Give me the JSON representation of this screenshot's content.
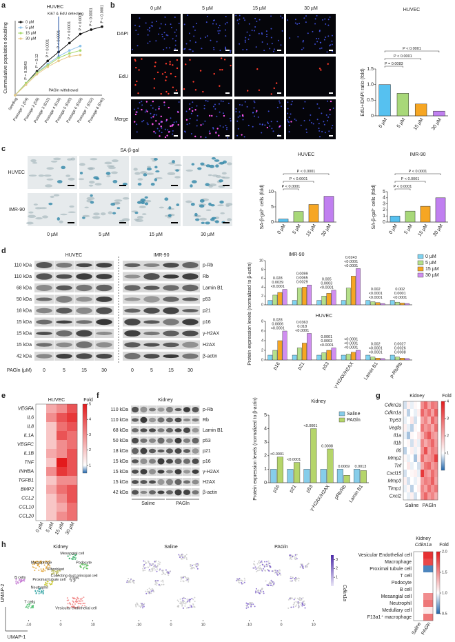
{
  "panel_labels": [
    "a",
    "b",
    "c",
    "d",
    "e",
    "f",
    "g",
    "h"
  ],
  "a": {
    "ki67": "Ki67 & EdU detecting",
    "withdrawal": "PAGln withdrawal"
  },
  "b": {
    "columns": [
      "0 µM",
      "5 µM",
      "15 µM",
      "30 µM"
    ],
    "rows": [
      "DAPI",
      "EdU",
      "Merge"
    ]
  },
  "c": {
    "title": "SA-β-gal",
    "rows": [
      "HUVEC",
      "IMR-90"
    ],
    "columns": [
      "0 µM",
      "5 µM",
      "15 µM",
      "30 µM"
    ]
  },
  "d": {
    "groups": [
      "HUVEC",
      "IMR-90"
    ],
    "kda": [
      "110 kDa",
      "110 kDa",
      "68 kDa",
      "50 kDa",
      "18 kDa",
      "15 kDa",
      "15 kDa",
      "15 kDa",
      "42 kDa"
    ],
    "proteins": [
      "p-Rb",
      "Rb",
      "Lamin B1",
      "p53",
      "p21",
      "p16",
      "γ-H2AX",
      "H2AX",
      "β-actin"
    ],
    "treatment": "PAGln (µM)",
    "lanes": [
      "0",
      "5",
      "15",
      "30",
      "0",
      "5",
      "15",
      "30"
    ]
  },
  "f": {
    "title": "Kidney",
    "kda": [
      "110 kDa",
      "110 kDa",
      "68 kDa",
      "50 kDa",
      "18 kDa",
      "15 kDa",
      "15 kDa",
      "15 kDa",
      "42 kDa"
    ],
    "proteins": [
      "p-Rb",
      "Rb",
      "Lamin B1",
      "p53",
      "p21",
      "p16",
      "γ-H2AX",
      "H2AX",
      "β-actin"
    ],
    "groups": [
      "Saline",
      "PAGln"
    ]
  },
  "h": {
    "titles": [
      "Kidney",
      "Saline",
      "PAGln"
    ],
    "clusters": [
      "Macrophage",
      "Mesangial cell",
      "Podocyte",
      "Fibroblast",
      "Collecting duct principal cell",
      "B cells",
      "Proximal tubule cell",
      "Neutrophil",
      "T cells",
      "Vesicular endothelial cell"
    ],
    "xlim": [
      -15,
      15
    ],
    "xticks": [
      -10,
      0,
      10
    ],
    "x_label": "UMAP-1",
    "y_label": "UMAP-2",
    "colorbar_lim": [
      0,
      3.5
    ],
    "colorbar_ticks": [
      1,
      2,
      3
    ],
    "colorbar_label": "Cdkn1a"
  },
  "chart_data": [
    {
      "type": "line",
      "title": "HUVEC",
      "ylabel": "Cummulative population doubling",
      "categories": [
        "Seeding",
        "Passage 1 (D4)",
        "Passage 2 (D8)",
        "Passage 3 (D12)",
        "Passage 4 (D16)",
        "Passage 5 (D20)",
        "Passage 6 (D28)",
        "Passage 7 (D32)",
        "Passage 8 (D40)"
      ],
      "ylim": [
        0,
        5
      ],
      "series": [
        {
          "name": "0 µM",
          "color": "#111111",
          "values": [
            0,
            0.8,
            1.6,
            2.3,
            2.9,
            3.5,
            4.1,
            4.4,
            4.6
          ]
        },
        {
          "name": "5 µM",
          "color": "#8ec3ea",
          "values": [
            0,
            0.8,
            1.5,
            2.1,
            2.6,
            3.0,
            3.3,
            null,
            null
          ]
        },
        {
          "name": "15 µM",
          "color": "#a6d96a",
          "values": [
            0,
            0.8,
            1.5,
            2.0,
            2.5,
            2.8,
            3.0,
            null,
            null
          ]
        },
        {
          "name": "30 µM",
          "color": "#e8c98a",
          "values": [
            0,
            0.7,
            1.4,
            1.9,
            2.3,
            2.6,
            2.7,
            null,
            null
          ]
        }
      ],
      "annotations": [
        "P = 0.3843",
        "P = 0.12",
        "P = 0.0001",
        "P < 0.0001",
        "P < 0.0001",
        "P < 0.0001",
        "P < 0.0001",
        "P < 0.0001"
      ]
    },
    {
      "type": "bar",
      "title": "HUVEC",
      "ylabel": "EdU+/DAPI ratio (fold)",
      "categories": [
        "0 µM",
        "5 µM",
        "15 µM",
        "30 µM"
      ],
      "values": [
        1.0,
        0.72,
        0.38,
        0.15
      ],
      "colors": [
        "#56c1f0",
        "#a8d879",
        "#f6a623",
        "#c07ff0"
      ],
      "ylim": [
        0,
        1.5
      ],
      "yticks": [
        0,
        0.5,
        {
          "value": 1,
          "label": "1.0"
        },
        1.5
      ],
      "annotations": [
        "P = 0.0083",
        "P < 0.0001",
        "P < 0.0001"
      ]
    },
    {
      "type": "bar",
      "title": "HUVEC",
      "ylabel": "SA-β-gal⁺ cells (fold)",
      "categories": [
        "0 µM",
        "5 µM",
        "15 µM",
        "30 µM"
      ],
      "values": [
        1,
        3.5,
        5.8,
        8.5
      ],
      "colors": [
        "#56c1f0",
        "#a8d879",
        "#f6a623",
        "#c07ff0"
      ],
      "ylim": [
        0,
        10
      ],
      "yticks": [
        0,
        5,
        10
      ],
      "annotations": [
        "P < 0.0001",
        "P < 0.0001",
        "P < 0.0001"
      ]
    },
    {
      "type": "bar",
      "title": "IMR-90",
      "ylabel": "SA-β-gal⁺ cells (fold)",
      "categories": [
        "0 µM",
        "5 µM",
        "15 µM",
        "30 µM"
      ],
      "values": [
        1,
        1.8,
        2.6,
        4.0
      ],
      "colors": [
        "#56c1f0",
        "#a8d879",
        "#f6a623",
        "#c07ff0"
      ],
      "ylim": [
        0,
        5
      ],
      "yticks": [
        0,
        1,
        2,
        3,
        4,
        5
      ],
      "annotations": [
        "P < 0.0001",
        "P < 0.0001",
        "P < 0.0001"
      ]
    },
    {
      "type": "bar",
      "title": "IMR-90",
      "ylabel": "Protein expression levels (normalized to β-actin)",
      "ylim": [
        0,
        10
      ],
      "yticks": [
        0,
        2,
        4,
        6,
        8,
        10
      ],
      "legend": "right",
      "series": [
        {
          "name": "0 µM",
          "color": "#7fd3f0",
          "values": [
            1,
            1,
            1,
            1,
            1,
            1
          ]
        },
        {
          "name": "5 µM",
          "color": "#b5e08a",
          "values": [
            2.2,
            3.8,
            2.0,
            3.8,
            0.7,
            0.6
          ]
        },
        {
          "name": "15 µM",
          "color": "#f6a623",
          "values": [
            2.8,
            4.0,
            2.6,
            6.5,
            0.5,
            0.4
          ]
        },
        {
          "name": "30 µM",
          "color": "#d08ef0",
          "values": [
            3.5,
            4.5,
            3.3,
            8.2,
            0.3,
            0.3
          ]
        }
      ],
      "annotations": [
        [
          "<0.0001",
          "0.0039",
          "0.028"
        ],
        [
          "0.0029",
          "0.0065",
          "0.0099"
        ],
        [
          "<0.0001",
          "0.0003",
          "0.005"
        ],
        [
          "<0.0001",
          "<0.0001",
          "0.0243"
        ],
        [
          "<0.0001",
          "<0.0001",
          "0.002"
        ],
        [
          "<0.0001",
          "0.0001",
          "0.002"
        ]
      ]
    },
    {
      "type": "bar",
      "title": "HUVEC",
      "categories": [
        "p16",
        "p21",
        "p53",
        "γ-H2AX/H2AX",
        "Lamin B1",
        "p-Rb/Rb"
      ],
      "ylim": [
        0,
        8
      ],
      "yticks": [
        0,
        2,
        4,
        6,
        8
      ],
      "series": [
        {
          "color": "#7fd3f0",
          "values": [
            1,
            1,
            1,
            1,
            1,
            1
          ]
        },
        {
          "color": "#b5e08a",
          "values": [
            2,
            2.5,
            1.5,
            1.2,
            0.6,
            0.6
          ]
        },
        {
          "color": "#f6a623",
          "values": [
            4,
            3.5,
            2,
            1.6,
            0.4,
            0.4
          ]
        },
        {
          "color": "#d08ef0",
          "values": [
            6,
            5.5,
            2.5,
            2,
            0.3,
            0.3
          ]
        }
      ],
      "annotations": [
        [
          "<0.0001",
          "0.0006",
          "0.028"
        ],
        [
          "<0.0001",
          "0.018",
          "0.0363"
        ],
        [
          "<0.0001",
          "0.0003",
          "0.0001"
        ],
        [
          "<0.0001",
          "<0.0001",
          "<0.0001"
        ],
        [
          "<0.0001",
          "<0.0001",
          "0.002"
        ],
        [
          "0.0008",
          "0.0026",
          "0.0027"
        ]
      ]
    },
    {
      "type": "heatmap",
      "title": "HUVEC",
      "colorbar_label": "Fold",
      "rows": [
        "VEGFA",
        "IL6",
        "IL8",
        "IL1A",
        "VEGFC",
        "IL1B",
        "TNF",
        "INHBA",
        "TGFB1",
        "BMP2",
        "CCL2",
        "CCL10",
        "CCL20"
      ],
      "columns": [
        "0 µM",
        "5 µM",
        "15 µM",
        "30 µM"
      ],
      "values": [
        [
          1,
          2.5,
          3,
          4
        ],
        [
          1,
          3,
          4,
          4.5
        ],
        [
          1,
          2,
          3.5,
          4
        ],
        [
          1,
          2,
          4,
          3.5
        ],
        [
          1,
          2,
          3,
          3.5
        ],
        [
          1,
          2.5,
          3,
          4
        ],
        [
          1,
          2,
          5,
          4
        ],
        [
          1,
          3,
          4.5,
          4
        ],
        [
          1,
          2,
          3,
          3
        ],
        [
          1,
          2.5,
          3.5,
          4
        ],
        [
          1,
          2,
          3,
          4
        ],
        [
          1,
          2,
          2.5,
          3.5
        ],
        [
          1,
          2,
          3,
          3.5
        ]
      ],
      "zlim": [
        0.5,
        5
      ],
      "zcenter": 1,
      "zticks": [
        1,
        2,
        3,
        4,
        5
      ],
      "colors": [
        "#2166ac",
        "#ffffff",
        "#e31a1c"
      ]
    },
    {
      "type": "bar",
      "title": "Kidney",
      "ylabel": "Protein expression levels (normalized to β-actin)",
      "categories": [
        "p16",
        "p21",
        "p53",
        "γ-H2AX/H2AX",
        "pRb/Rb",
        "Lamin B1"
      ],
      "legend": "upper right",
      "series": [
        {
          "name": "Saline",
          "color": "#86cdea",
          "values": [
            1,
            1,
            1,
            1,
            1,
            1
          ]
        },
        {
          "name": "PAGln",
          "color": "#b5d56a",
          "values": [
            1.9,
            1.5,
            4.0,
            2.5,
            0.55,
            0.9
          ]
        }
      ],
      "ylim": [
        0,
        5
      ],
      "yticks": [
        0,
        1,
        2,
        3,
        4,
        5
      ],
      "annotations": [
        [
          "<0.0001"
        ],
        [
          "<0.0001"
        ],
        [
          "<0.0001"
        ],
        [
          "0.0008"
        ],
        [
          "0.0069"
        ],
        [
          "0.0013"
        ]
      ]
    },
    {
      "type": "heatmap",
      "title": "Kidney",
      "colorbar_label": "Fold",
      "rows": [
        "Cdkn2a",
        "Cdkn1a",
        "Trp53",
        "Vegfa",
        "Il1a",
        "Il1b",
        "Il6",
        "Mmp2",
        "Tnf",
        "Cxcl15",
        "Mmp3",
        "Timp1",
        "Cxcl2"
      ],
      "columns": [
        null,
        null,
        null,
        null,
        null,
        null,
        null,
        null,
        null,
        null
      ],
      "groups": [
        "Saline",
        "PAGln"
      ],
      "values": [
        [
          0.8,
          1.2,
          0.9,
          1.1,
          1.0,
          2.5,
          3.0,
          2.2,
          2.8,
          2.6
        ],
        [
          1.1,
          0.7,
          1.0,
          0.9,
          1.2,
          3.0,
          2.4,
          2.9,
          2.2,
          3.1
        ],
        [
          0.9,
          1.0,
          1.3,
          0.8,
          1.0,
          2.2,
          2.6,
          2.0,
          3.0,
          2.4
        ],
        [
          1.2,
          0.9,
          0.7,
          1.1,
          1.0,
          2.8,
          2.3,
          2.6,
          2.1,
          2.9
        ],
        [
          0.9,
          0.6,
          1.1,
          1.0,
          1.3,
          2.0,
          2.7,
          3.2,
          2.4,
          2.2
        ],
        [
          1.0,
          1.1,
          0.8,
          1.2,
          0.9,
          2.6,
          2.1,
          2.5,
          3.0,
          2.3
        ],
        [
          0.7,
          1.0,
          1.2,
          0.9,
          1.1,
          2.4,
          3.3,
          2.2,
          2.7,
          2.5
        ],
        [
          1.1,
          0.9,
          1.0,
          0.6,
          1.2,
          2.9,
          2.2,
          2.4,
          2.6,
          3.5
        ],
        [
          1.0,
          1.3,
          0.9,
          1.0,
          0.8,
          2.1,
          2.8,
          3.0,
          2.3,
          2.6
        ],
        [
          0.8,
          1.0,
          1.1,
          1.2,
          0.9,
          3.6,
          2.5,
          2.2,
          2.9,
          2.4
        ],
        [
          1.2,
          0.8,
          1.0,
          0.9,
          1.1,
          2.3,
          2.7,
          2.5,
          3.1,
          2.2
        ],
        [
          0.9,
          1.1,
          0.7,
          1.0,
          1.2,
          2.6,
          2.2,
          2.9,
          2.4,
          2.8
        ],
        [
          1.0,
          0.9,
          1.2,
          0.8,
          1.0,
          2.5,
          3.0,
          2.3,
          2.6,
          2.1
        ]
      ],
      "zlim": [
        0,
        4
      ],
      "zcenter": 1,
      "zticks": [
        1,
        2,
        3,
        4
      ],
      "colors": [
        "#2166ac",
        "#ffffff",
        "#e31a1c"
      ]
    },
    {
      "type": "heatmap",
      "title": "Kidney",
      "subtitle": "Cdkn1a",
      "colorbar_label": "Fold",
      "rows": [
        "Vesicular Endothelial cell",
        "Macrophage",
        "Proximal tubule cell",
        "T cell",
        "Podocyte",
        "B cell",
        "Mesangial cell",
        "Neutrophil",
        "Medullary cell",
        "F13a1⁺ macrophage"
      ],
      "columns": [
        "Saline",
        "PAGln"
      ],
      "values": [
        [
          1,
          1.9
        ],
        [
          1,
          1.8
        ],
        [
          1,
          0.6
        ],
        [
          1,
          1.0
        ],
        [
          1,
          1.0
        ],
        [
          1,
          1.0
        ],
        [
          1,
          1.5
        ],
        [
          1,
          1.6
        ],
        [
          1,
          1.1
        ],
        [
          1,
          1.6
        ]
      ],
      "zlim": [
        0.5,
        2
      ],
      "zcenter": 1,
      "zticks": [
        0.5,
        {
          "value": 1,
          "label": "1.0"
        },
        1.5,
        {
          "value": 2,
          "label": "2.0"
        }
      ],
      "colors": [
        "#2166ac",
        "#ffffff",
        "#e31a1c"
      ]
    }
  ]
}
